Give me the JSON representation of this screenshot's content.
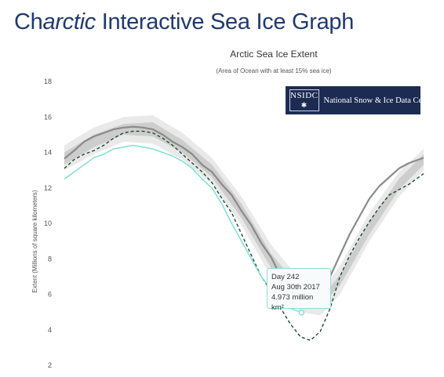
{
  "page": {
    "title_prefix": "Ch",
    "title_italic": "arctic",
    "title_suffix": " Interactive Sea Ice Graph"
  },
  "logo": {
    "abbr": "NSIDC",
    "star": "✱",
    "text": "National Snow & Ice Data Center"
  },
  "tooltip": {
    "day": "Day 242",
    "date": "Aug 30th 2017",
    "value": "4.973 million km²"
  },
  "colors": {
    "title": "#1f3a6e",
    "average_line": "#8a8a8a",
    "band_inner": "#cdcdcd",
    "band_outer": "#e9e9e9",
    "current_year": "#7fe0d6",
    "dashed_year": "#1d4a2e",
    "logo_bg": "#1c2b52"
  },
  "chart_data": {
    "type": "line",
    "title": "Arctic Sea Ice Extent",
    "subtitle": "(Area of Ocean with at least 15% sea ice)",
    "xlabel": "",
    "ylabel": "Extent (Millions of square kilometers)",
    "x_unit": "day of year",
    "xlim": [
      1,
      366
    ],
    "ylim": [
      2,
      18
    ],
    "yticks": [
      2,
      4,
      6,
      8,
      10,
      12,
      14,
      16,
      18
    ],
    "grid": false,
    "highlight_point": {
      "x": 242,
      "y": 4.973
    },
    "series": [
      {
        "style": "band-outer",
        "x": [
          1,
          31,
          61,
          91,
          121,
          151,
          181,
          211,
          241,
          261,
          281,
          311,
          341,
          366
        ],
        "low": [
          13.0,
          13.9,
          14.6,
          14.5,
          13.6,
          12.2,
          9.9,
          7.0,
          5.0,
          4.8,
          6.0,
          9.0,
          11.5,
          13.0
        ],
        "high": [
          14.4,
          15.4,
          16.0,
          16.1,
          15.1,
          13.7,
          11.5,
          8.8,
          6.8,
          6.1,
          7.6,
          10.6,
          12.9,
          14.2
        ]
      },
      {
        "style": "band-inner",
        "x": [
          1,
          31,
          61,
          91,
          121,
          151,
          181,
          211,
          241,
          261,
          281,
          311,
          341,
          366
        ],
        "low": [
          13.3,
          14.3,
          15.0,
          14.9,
          14.0,
          12.6,
          10.3,
          7.5,
          5.5,
          5.3,
          6.5,
          9.4,
          11.9,
          13.3
        ],
        "high": [
          14.0,
          15.0,
          15.6,
          15.7,
          14.7,
          13.3,
          11.1,
          8.3,
          6.3,
          5.7,
          7.1,
          10.1,
          12.5,
          13.9
        ]
      },
      {
        "style": "average",
        "x": [
          1,
          11,
          21,
          31,
          41,
          51,
          61,
          71,
          81,
          91,
          101,
          111,
          121,
          131,
          141,
          151,
          161,
          171,
          181,
          191,
          201,
          211,
          221,
          231,
          241,
          251,
          261,
          271,
          281,
          291,
          301,
          311,
          321,
          331,
          341,
          351,
          361,
          366
        ],
        "values": [
          13.65,
          14.1,
          14.6,
          14.9,
          15.1,
          15.3,
          15.4,
          15.45,
          15.4,
          15.3,
          15.0,
          14.6,
          14.3,
          13.9,
          13.3,
          12.9,
          12.2,
          11.6,
          10.7,
          9.9,
          8.9,
          8.1,
          7.0,
          6.5,
          5.9,
          5.7,
          6.0,
          7.0,
          8.2,
          9.4,
          10.4,
          11.4,
          12.1,
          12.6,
          13.1,
          13.4,
          13.6,
          13.7
        ]
      },
      {
        "style": "dashed",
        "x": [
          1,
          11,
          21,
          31,
          41,
          51,
          61,
          71,
          81,
          91,
          101,
          111,
          121,
          131,
          141,
          151,
          161,
          171,
          181,
          191,
          201,
          211,
          221,
          231,
          241,
          251,
          261,
          271,
          281,
          291,
          301,
          311,
          321,
          331,
          341,
          351,
          361,
          366
        ],
        "values": [
          13.1,
          13.6,
          13.9,
          14.1,
          14.4,
          14.8,
          15.1,
          15.2,
          15.2,
          15.1,
          14.8,
          14.4,
          13.9,
          13.4,
          12.9,
          12.3,
          11.4,
          10.6,
          9.4,
          8.2,
          7.0,
          6.2,
          5.2,
          4.3,
          3.6,
          3.4,
          3.9,
          5.2,
          7.0,
          8.2,
          9.2,
          10.1,
          10.9,
          11.6,
          11.9,
          12.2,
          12.6,
          12.8
        ]
      },
      {
        "style": "current",
        "x": [
          1,
          11,
          21,
          31,
          41,
          51,
          61,
          71,
          81,
          91,
          101,
          111,
          121,
          131,
          141,
          151,
          161,
          171,
          181,
          191,
          201,
          211,
          221,
          231,
          242
        ],
        "values": [
          12.5,
          12.9,
          13.3,
          13.7,
          13.9,
          14.2,
          14.3,
          14.4,
          14.3,
          14.2,
          14.0,
          13.8,
          13.5,
          13.1,
          12.5,
          12.0,
          11.1,
          10.0,
          9.0,
          8.0,
          7.0,
          6.3,
          5.7,
          5.2,
          4.973
        ]
      }
    ]
  }
}
